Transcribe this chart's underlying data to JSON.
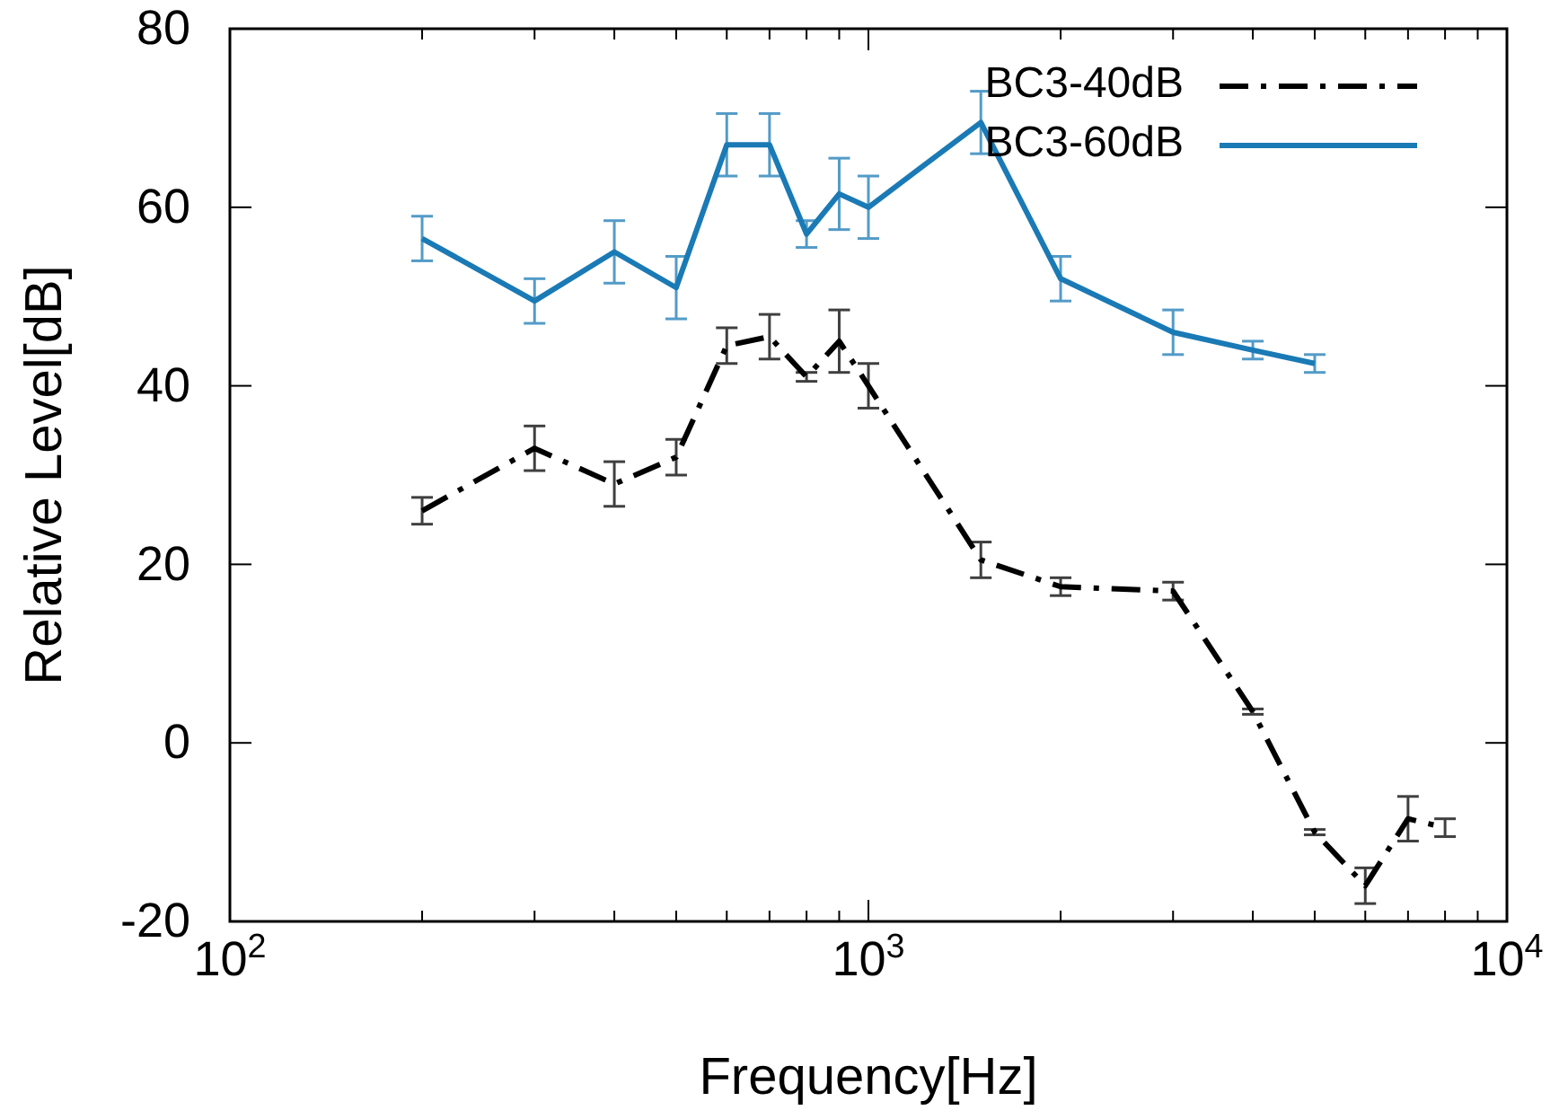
{
  "chart_data": {
    "type": "line",
    "xlabel": "Frequency[Hz]",
    "ylabel": "Relative Level[dB]",
    "log": "x",
    "xlim": [
      100,
      10000
    ],
    "xticks": [
      {
        "value": 100,
        "label": "10$^{2}$"
      },
      {
        "value": 1000,
        "label": "10$^{3}$"
      },
      {
        "value": 10000,
        "label": "10$^{4}$"
      }
    ],
    "ylim": [
      -20,
      80
    ],
    "yticks": [
      -20,
      0,
      20,
      40,
      60,
      80
    ],
    "grid": false,
    "legend": "top right",
    "marker": "none",
    "series": [
      {
        "name": "BC3-40dB",
        "color": "#000000",
        "line_style": "dashed",
        "x": [
          200,
          300,
          400,
          500,
          600,
          700,
          800,
          900,
          1000,
          1500,
          2000,
          3000,
          4000,
          5000,
          6000,
          7000,
          8000
        ],
        "values": [
          26,
          33,
          29,
          32,
          44.5,
          45.5,
          41,
          45,
          40,
          20.5,
          17.5,
          17,
          3.5,
          -10,
          -16,
          -8.5,
          -9.5
        ],
        "errors": [
          1.5,
          2.5,
          2.5,
          2,
          2,
          2.5,
          0.5,
          3.5,
          2.5,
          2,
          1,
          1,
          0.3,
          0.3,
          2,
          2.5,
          1
        ]
      },
      {
        "name": "BC3-60dB",
        "color": "#1a7ab5",
        "line_style": "solid",
        "x": [
          200,
          300,
          400,
          500,
          600,
          700,
          800,
          900,
          1000,
          1500,
          2000,
          3000,
          4000,
          5000
        ],
        "values": [
          56.5,
          49.5,
          55,
          51,
          67,
          67,
          57,
          61.5,
          60,
          69.5,
          52,
          46,
          44,
          42.5
        ],
        "errors": [
          2.5,
          2.5,
          3.5,
          3.5,
          3.5,
          3.5,
          1.5,
          4,
          3.5,
          3.5,
          2.5,
          2.5,
          1,
          1
        ]
      }
    ]
  }
}
